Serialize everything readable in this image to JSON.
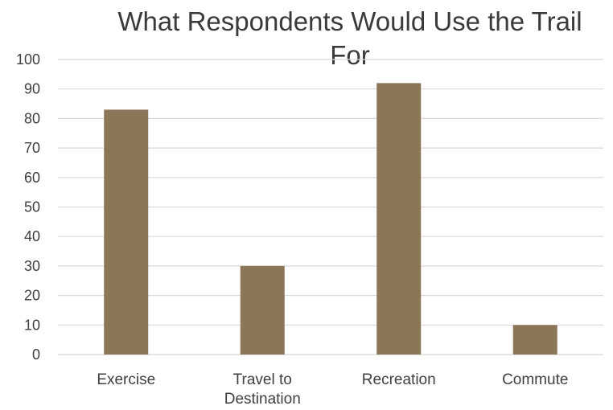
{
  "chart_data": {
    "type": "bar",
    "title": "What Respondents Would Use the Trail For",
    "categories": [
      "Exercise",
      "Travel to Destination",
      "Recreation",
      "Commute"
    ],
    "category_lines": [
      [
        "Exercise"
      ],
      [
        "Travel to",
        "Destination"
      ],
      [
        "Recreation"
      ],
      [
        "Commute"
      ]
    ],
    "values": [
      83,
      30,
      92,
      10
    ],
    "xlabel": "",
    "ylabel": "",
    "ylim": [
      0,
      100
    ],
    "yticks": [
      0,
      10,
      20,
      30,
      40,
      50,
      60,
      70,
      80,
      90,
      100
    ],
    "grid": true,
    "legend": "none",
    "bar_color": "#8b7757",
    "grid_color": "#d9d9d9"
  }
}
